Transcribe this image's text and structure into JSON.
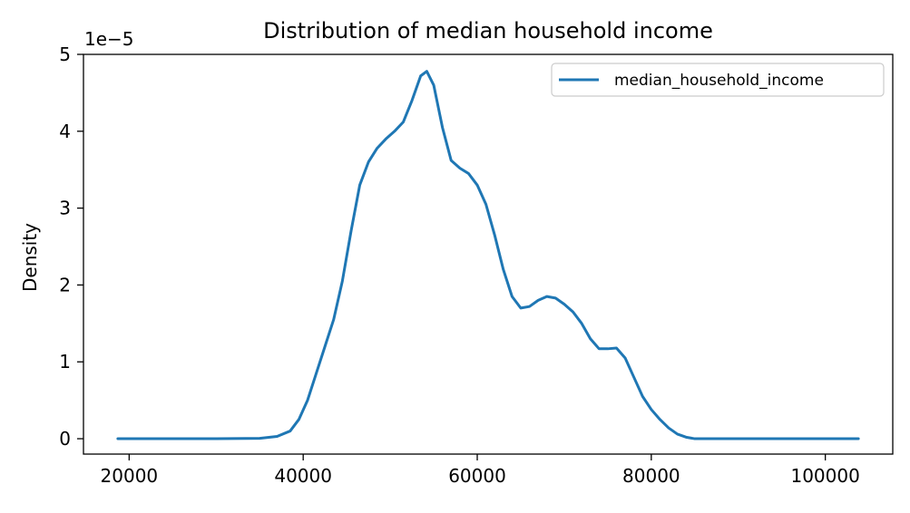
{
  "chart_data": {
    "type": "line",
    "title": "Distribution of median household income",
    "xlabel": "",
    "ylabel": "Density",
    "y_offset_label": "1e−5",
    "x_ticks": [
      20000,
      40000,
      60000,
      80000,
      100000
    ],
    "x_tick_labels": [
      "20000",
      "40000",
      "60000",
      "80000",
      "100000"
    ],
    "y_ticks": [
      0,
      1,
      2,
      3,
      4,
      5
    ],
    "y_tick_labels": [
      "0",
      "1",
      "2",
      "3",
      "4",
      "5"
    ],
    "xlim": [
      14750,
      107750
    ],
    "ylim": [
      -0.2,
      5.0
    ],
    "y_scale_note": "values in units of 1e-5",
    "grid": false,
    "legend": {
      "position": "top-right",
      "entries": [
        "median_household_income"
      ]
    },
    "colors": {
      "series": "#1f77b4",
      "axes": "#000000",
      "legend_border": "#cccccc"
    },
    "series": [
      {
        "name": "median_household_income",
        "x": [
          18700,
          25000,
          30000,
          35000,
          37000,
          38500,
          39500,
          40500,
          41500,
          42500,
          43500,
          44500,
          45500,
          46500,
          47500,
          48500,
          49500,
          50500,
          51500,
          52500,
          53500,
          54200,
          55000,
          56000,
          57000,
          58000,
          59000,
          60000,
          61000,
          62000,
          63000,
          64000,
          65000,
          66000,
          67000,
          68000,
          69000,
          70000,
          71000,
          72000,
          73000,
          74000,
          75000,
          76000,
          77000,
          78000,
          79000,
          80000,
          81000,
          82000,
          83000,
          84000,
          85000,
          86000,
          88000,
          92000,
          98000,
          103800
        ],
        "values": [
          0.0,
          0.0,
          0.0,
          0.005,
          0.03,
          0.1,
          0.25,
          0.5,
          0.85,
          1.2,
          1.55,
          2.05,
          2.7,
          3.3,
          3.6,
          3.78,
          3.9,
          4.0,
          4.12,
          4.4,
          4.72,
          4.78,
          4.6,
          4.05,
          3.62,
          3.52,
          3.45,
          3.3,
          3.05,
          2.65,
          2.2,
          1.85,
          1.7,
          1.72,
          1.8,
          1.85,
          1.83,
          1.75,
          1.65,
          1.5,
          1.3,
          1.17,
          1.17,
          1.18,
          1.05,
          0.8,
          0.55,
          0.38,
          0.25,
          0.14,
          0.06,
          0.02,
          0.0,
          0.0,
          0.0,
          0.0,
          0.0,
          0.0
        ]
      }
    ]
  }
}
